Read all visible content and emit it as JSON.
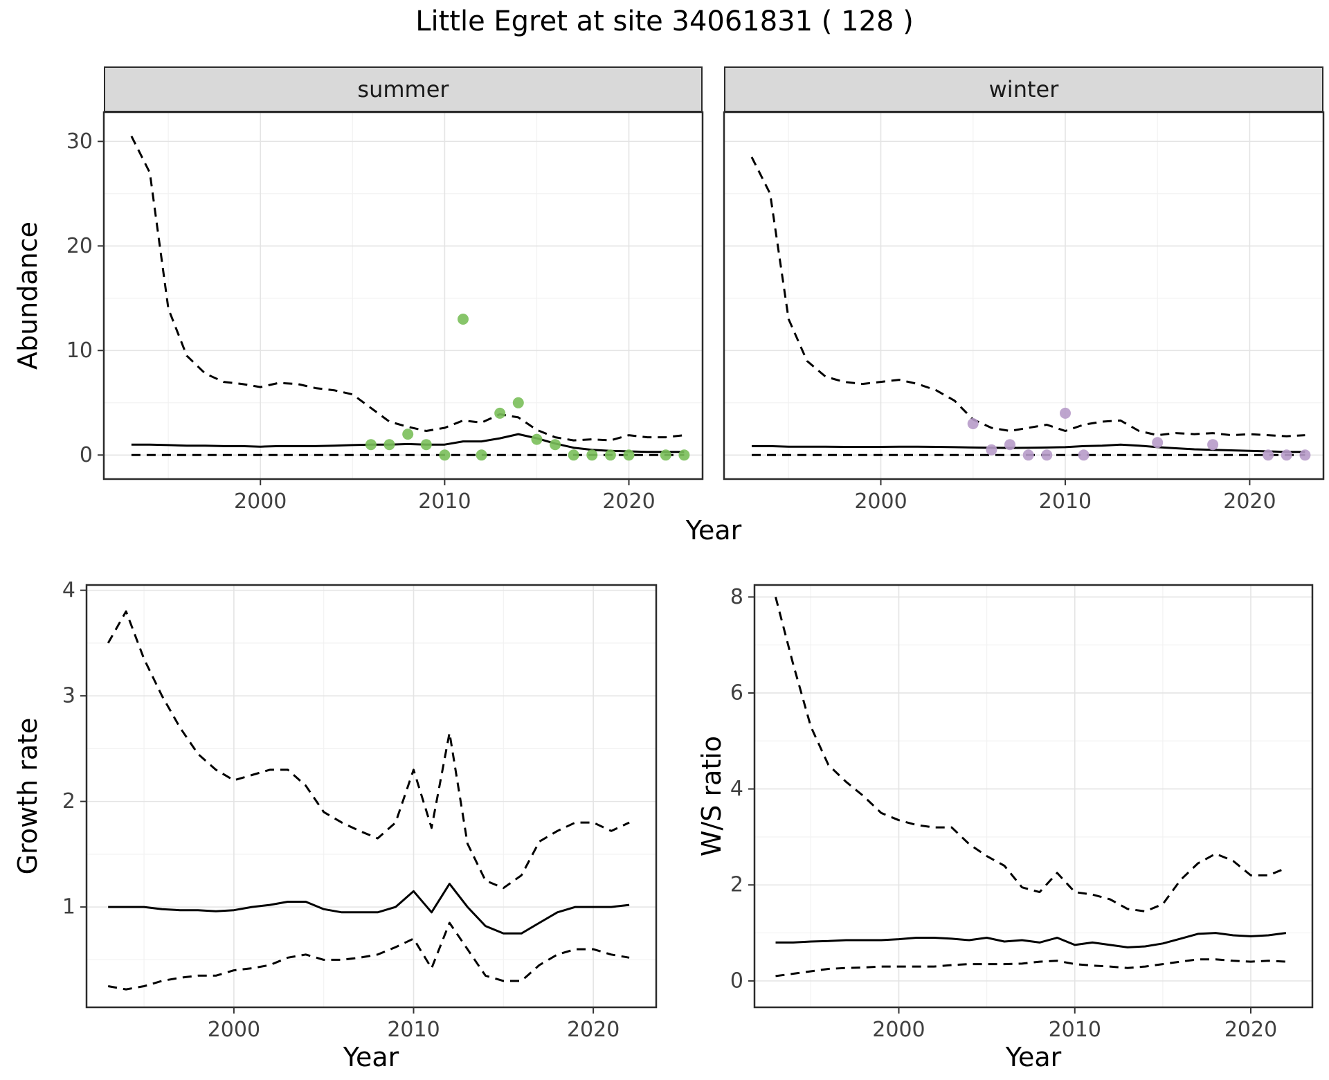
{
  "title": "Little Egret at site 34061831 ( 128 )",
  "facets": {
    "summer": "summer",
    "winter": "winter"
  },
  "axis_labels": {
    "abundance": "Abundance",
    "year": "Year",
    "growth_rate": "Growth rate",
    "ws_ratio": "W/S ratio"
  },
  "colors": {
    "summer_point": "#7abf5a",
    "winter_point": "#b79bc9",
    "line": "#000000",
    "grid_major": "#e4e4e4",
    "grid_minor": "#f2f2f2",
    "panel_border": "#2b2b2b",
    "strip_bg": "#d9d9d9",
    "tick_text": "#404040"
  },
  "chart_data": [
    {
      "id": "abundance-summer",
      "type": "line",
      "facet": "summer",
      "ylabel": "Abundance",
      "xlabel": "Year",
      "xlim": [
        1991.5,
        2024
      ],
      "ylim": [
        -2.3,
        32.8
      ],
      "xticks": [
        2000,
        2010,
        2020
      ],
      "xticks_minor": [
        1995,
        2005,
        2015
      ],
      "yticks": [
        0,
        10,
        20,
        30
      ],
      "yticks_minor": [
        5,
        15,
        25
      ],
      "x": [
        1993,
        1994,
        1995,
        1996,
        1997,
        1998,
        1999,
        2000,
        2001,
        2002,
        2003,
        2004,
        2005,
        2006,
        2007,
        2008,
        2009,
        2010,
        2011,
        2012,
        2013,
        2014,
        2015,
        2016,
        2017,
        2018,
        2019,
        2020,
        2021,
        2022,
        2023
      ],
      "series": [
        {
          "name": "upper_ci",
          "style": "dashed",
          "values": [
            30.5,
            27,
            14,
            9.5,
            7.8,
            7,
            6.8,
            6.5,
            6.9,
            6.8,
            6.4,
            6.2,
            5.8,
            4.5,
            3.2,
            2.7,
            2.3,
            2.6,
            3.3,
            3.1,
            3.9,
            3.6,
            2.4,
            1.7,
            1.4,
            1.5,
            1.4,
            1.9,
            1.7,
            1.7,
            1.9
          ]
        },
        {
          "name": "median",
          "style": "solid",
          "values": [
            1,
            1,
            0.95,
            0.9,
            0.9,
            0.85,
            0.85,
            0.8,
            0.85,
            0.85,
            0.85,
            0.9,
            0.95,
            1,
            1,
            1.05,
            1,
            1,
            1.3,
            1.3,
            1.6,
            2,
            1.6,
            1.1,
            0.7,
            0.5,
            0.4,
            0.35,
            0.3,
            0.3,
            0.3
          ]
        },
        {
          "name": "lower_ci",
          "style": "dashed",
          "values": [
            0,
            0,
            0,
            0,
            0,
            0,
            0,
            0,
            0,
            0,
            0,
            0,
            0,
            0,
            0,
            0,
            0,
            0,
            0,
            0,
            0,
            0,
            0,
            0,
            0,
            0,
            0,
            0,
            0,
            0,
            0
          ]
        }
      ],
      "points": {
        "color_key": "summer_point",
        "x": [
          2006,
          2007,
          2008,
          2009,
          2010,
          2011,
          2012,
          2013,
          2014,
          2015,
          2016,
          2017,
          2018,
          2019,
          2020,
          2022,
          2023
        ],
        "y": [
          1,
          1,
          2,
          1,
          0,
          13,
          0,
          4,
          5,
          1.5,
          1,
          0,
          0,
          0,
          0,
          0,
          0
        ]
      }
    },
    {
      "id": "abundance-winter",
      "type": "line",
      "facet": "winter",
      "ylabel": "Abundance",
      "xlabel": "Year",
      "xlim": [
        1991.5,
        2024
      ],
      "ylim": [
        -2.3,
        32.8
      ],
      "xticks": [
        2000,
        2010,
        2020
      ],
      "xticks_minor": [
        1995,
        2005,
        2015
      ],
      "yticks": [
        0,
        10,
        20,
        30
      ],
      "yticks_minor": [
        5,
        15,
        25
      ],
      "x": [
        1993,
        1994,
        1995,
        1996,
        1997,
        1998,
        1999,
        2000,
        2001,
        2002,
        2003,
        2004,
        2005,
        2006,
        2007,
        2008,
        2009,
        2010,
        2011,
        2012,
        2013,
        2014,
        2015,
        2016,
        2017,
        2018,
        2019,
        2020,
        2021,
        2022,
        2023
      ],
      "series": [
        {
          "name": "upper_ci",
          "style": "dashed",
          "values": [
            28.5,
            25,
            13,
            9,
            7.5,
            7,
            6.8,
            7,
            7.2,
            6.8,
            6.2,
            5.2,
            3.4,
            2.6,
            2.3,
            2.6,
            2.9,
            2.3,
            2.9,
            3.2,
            3.3,
            2.3,
            1.9,
            2.1,
            2,
            2.1,
            1.9,
            2,
            1.9,
            1.8,
            1.9
          ]
        },
        {
          "name": "median",
          "style": "solid",
          "values": [
            0.85,
            0.85,
            0.8,
            0.8,
            0.8,
            0.78,
            0.78,
            0.78,
            0.8,
            0.8,
            0.78,
            0.75,
            0.72,
            0.7,
            0.68,
            0.7,
            0.72,
            0.75,
            0.85,
            0.9,
            1,
            0.9,
            0.75,
            0.65,
            0.55,
            0.5,
            0.45,
            0.4,
            0.35,
            0.3,
            0.3
          ]
        },
        {
          "name": "lower_ci",
          "style": "dashed",
          "values": [
            0,
            0,
            0,
            0,
            0,
            0,
            0,
            0,
            0,
            0,
            0,
            0,
            0,
            0,
            0,
            0,
            0,
            0,
            0,
            0,
            0,
            0,
            0,
            0,
            0,
            0,
            0,
            0,
            0,
            0,
            0
          ]
        }
      ],
      "points": {
        "color_key": "winter_point",
        "x": [
          2005,
          2006,
          2007,
          2008,
          2009,
          2010,
          2011,
          2015,
          2018,
          2021,
          2022,
          2023
        ],
        "y": [
          3,
          0.5,
          1,
          0,
          0,
          4,
          0,
          1.2,
          1,
          0,
          0,
          0
        ]
      }
    },
    {
      "id": "growth-rate",
      "type": "line",
      "ylabel": "Growth rate",
      "xlabel": "Year",
      "xlim": [
        1991.8,
        2023.5
      ],
      "ylim": [
        0.05,
        4.05
      ],
      "xticks": [
        2000,
        2010,
        2020
      ],
      "xticks_minor": [
        1995,
        2005,
        2015
      ],
      "yticks": [
        1,
        2,
        3,
        4
      ],
      "yticks_minor": [
        0.5,
        1.5,
        2.5,
        3.5
      ],
      "x": [
        1993,
        1994,
        1995,
        1996,
        1997,
        1998,
        1999,
        2000,
        2001,
        2002,
        2003,
        2004,
        2005,
        2006,
        2007,
        2008,
        2009,
        2010,
        2011,
        2012,
        2013,
        2014,
        2015,
        2016,
        2017,
        2018,
        2019,
        2020,
        2021,
        2022
      ],
      "series": [
        {
          "name": "upper_ci",
          "style": "dashed",
          "values": [
            3.5,
            3.8,
            3.35,
            3,
            2.7,
            2.45,
            2.3,
            2.2,
            2.25,
            2.3,
            2.3,
            2.15,
            1.9,
            1.8,
            1.72,
            1.65,
            1.8,
            2.3,
            1.75,
            2.65,
            1.6,
            1.25,
            1.18,
            1.3,
            1.62,
            1.72,
            1.8,
            1.8,
            1.72,
            1.8
          ]
        },
        {
          "name": "median",
          "style": "solid",
          "values": [
            1,
            1,
            1,
            0.98,
            0.97,
            0.97,
            0.96,
            0.97,
            1,
            1.02,
            1.05,
            1.05,
            0.98,
            0.95,
            0.95,
            0.95,
            1,
            1.15,
            0.95,
            1.22,
            1,
            0.82,
            0.75,
            0.75,
            0.85,
            0.95,
            1,
            1,
            1,
            1.02
          ]
        },
        {
          "name": "lower_ci",
          "style": "dashed",
          "values": [
            0.25,
            0.22,
            0.25,
            0.3,
            0.33,
            0.35,
            0.35,
            0.4,
            0.42,
            0.45,
            0.52,
            0.55,
            0.5,
            0.5,
            0.52,
            0.55,
            0.62,
            0.7,
            0.42,
            0.85,
            0.6,
            0.35,
            0.3,
            0.3,
            0.45,
            0.55,
            0.6,
            0.6,
            0.55,
            0.52
          ]
        }
      ]
    },
    {
      "id": "ws-ratio",
      "type": "line",
      "ylabel": "W/S ratio",
      "xlabel": "Year",
      "xlim": [
        1991.8,
        2023.5
      ],
      "ylim": [
        -0.55,
        8.25
      ],
      "xticks": [
        2000,
        2010,
        2020
      ],
      "xticks_minor": [
        1995,
        2005,
        2015
      ],
      "yticks": [
        0,
        2,
        4,
        6,
        8
      ],
      "yticks_minor": [
        1,
        3,
        5,
        7
      ],
      "x": [
        1993,
        1994,
        1995,
        1996,
        1997,
        1998,
        1999,
        2000,
        2001,
        2002,
        2003,
        2004,
        2005,
        2006,
        2007,
        2008,
        2009,
        2010,
        2011,
        2012,
        2013,
        2014,
        2015,
        2016,
        2017,
        2018,
        2019,
        2020,
        2021,
        2022
      ],
      "series": [
        {
          "name": "upper_ci",
          "style": "dashed",
          "values": [
            8,
            6.6,
            5.3,
            4.5,
            4.15,
            3.85,
            3.5,
            3.35,
            3.25,
            3.2,
            3.2,
            2.85,
            2.6,
            2.4,
            1.95,
            1.85,
            2.25,
            1.85,
            1.8,
            1.7,
            1.5,
            1.45,
            1.6,
            2.1,
            2.45,
            2.65,
            2.5,
            2.2,
            2.2,
            2.35
          ]
        },
        {
          "name": "median",
          "style": "solid",
          "values": [
            0.8,
            0.8,
            0.82,
            0.83,
            0.85,
            0.85,
            0.85,
            0.87,
            0.9,
            0.9,
            0.88,
            0.85,
            0.9,
            0.82,
            0.85,
            0.8,
            0.9,
            0.75,
            0.8,
            0.75,
            0.7,
            0.72,
            0.78,
            0.88,
            0.98,
            1,
            0.95,
            0.93,
            0.95,
            1
          ]
        },
        {
          "name": "lower_ci",
          "style": "dashed",
          "values": [
            0.1,
            0.15,
            0.2,
            0.25,
            0.27,
            0.28,
            0.3,
            0.3,
            0.3,
            0.3,
            0.33,
            0.35,
            0.35,
            0.35,
            0.36,
            0.4,
            0.42,
            0.35,
            0.32,
            0.3,
            0.27,
            0.3,
            0.35,
            0.4,
            0.45,
            0.45,
            0.42,
            0.4,
            0.42,
            0.4
          ]
        }
      ]
    }
  ]
}
